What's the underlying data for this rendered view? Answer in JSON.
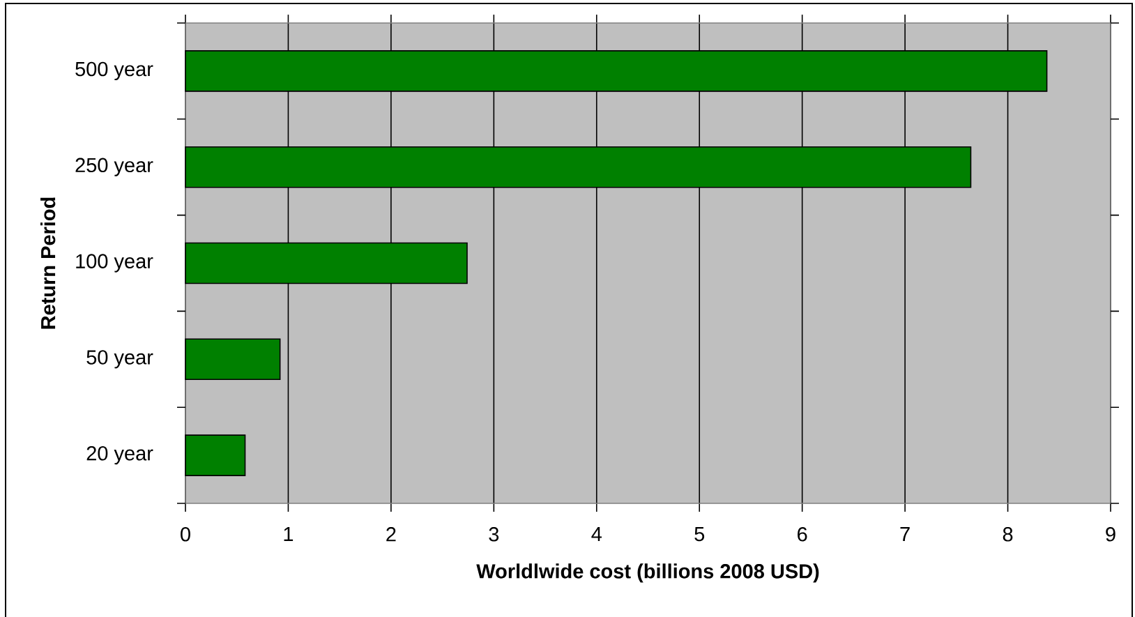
{
  "chart_data": {
    "type": "bar",
    "orientation": "horizontal",
    "xlabel": "Worldlwide cost (billions 2008 USD)",
    "ylabel": "Return Period",
    "categories": [
      "500 year",
      "250 year",
      "100 year",
      "50 year",
      "20 year"
    ],
    "values": [
      8.38,
      7.64,
      2.74,
      0.92,
      0.58
    ],
    "color": "#008000",
    "xlim": [
      0,
      9
    ],
    "xticks": [
      0,
      1,
      2,
      3,
      4,
      5,
      6,
      7,
      8,
      9
    ],
    "grid": "x"
  }
}
